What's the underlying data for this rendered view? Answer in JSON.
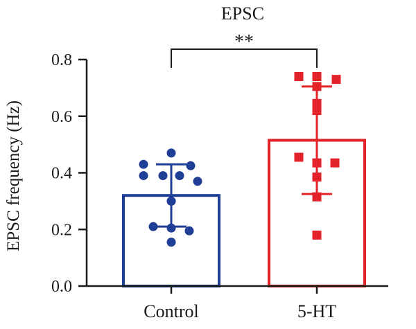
{
  "chart_data": {
    "type": "bar",
    "title": "EPSC",
    "ylabel": "EPSC frequency (Hz)",
    "xlabel": "",
    "ylim": [
      0,
      0.8
    ],
    "yticks": [
      0.0,
      0.2,
      0.4,
      0.6,
      0.8
    ],
    "ytick_labels": [
      "0.0",
      "0.2",
      "0.4",
      "0.6",
      "0.8"
    ],
    "categories": [
      "Control",
      "5-HT"
    ],
    "values": [
      0.32,
      0.515
    ],
    "sd": [
      0.11,
      0.19
    ],
    "colors": [
      "#1f3e96",
      "#e3232a"
    ],
    "points": [
      [
        0.47,
        0.43,
        0.425,
        0.39,
        0.39,
        0.39,
        0.37,
        0.3,
        0.3,
        0.21,
        0.205,
        0.195,
        0.155
      ],
      [
        0.74,
        0.74,
        0.73,
        0.705,
        0.645,
        0.62,
        0.455,
        0.435,
        0.435,
        0.385,
        0.315,
        0.18
      ]
    ],
    "significance": {
      "between": [
        0,
        1
      ],
      "label": "**"
    },
    "grid": false,
    "legend": "none"
  }
}
